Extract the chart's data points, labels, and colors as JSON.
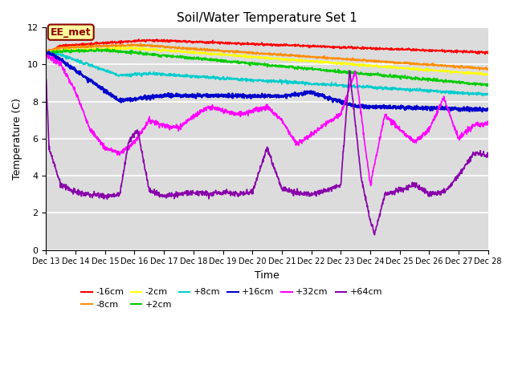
{
  "title": "Soil/Water Temperature Set 1",
  "xlabel": "Time",
  "ylabel": "Temperature (C)",
  "annotation": "EE_met",
  "xlim": [
    0,
    15
  ],
  "ylim": [
    0,
    12
  ],
  "yticks": [
    0,
    2,
    4,
    6,
    8,
    10,
    12
  ],
  "xtick_labels": [
    "Dec 13",
    "Dec 14",
    "Dec 15",
    "Dec 16",
    "Dec 17",
    "Dec 18",
    "Dec 19",
    "Dec 20",
    "Dec 21",
    "Dec 22",
    "Dec 23",
    "Dec 24",
    "Dec 25",
    "Dec 26",
    "Dec 27",
    "Dec 28"
  ],
  "bg_color": "#dcdcdc",
  "series": {
    "-16cm": {
      "color": "#ff0000",
      "lw": 1.2
    },
    "-8cm": {
      "color": "#ff8c00",
      "lw": 1.2
    },
    "-2cm": {
      "color": "#ffff00",
      "lw": 1.2
    },
    "+2cm": {
      "color": "#00cc00",
      "lw": 1.2
    },
    "+8cm": {
      "color": "#00cccc",
      "lw": 1.2
    },
    "+16cm": {
      "color": "#0000cc",
      "lw": 1.8
    },
    "+32cm": {
      "color": "#ff00ff",
      "lw": 1.2
    },
    "+64cm": {
      "color": "#8800aa",
      "lw": 1.2
    }
  }
}
